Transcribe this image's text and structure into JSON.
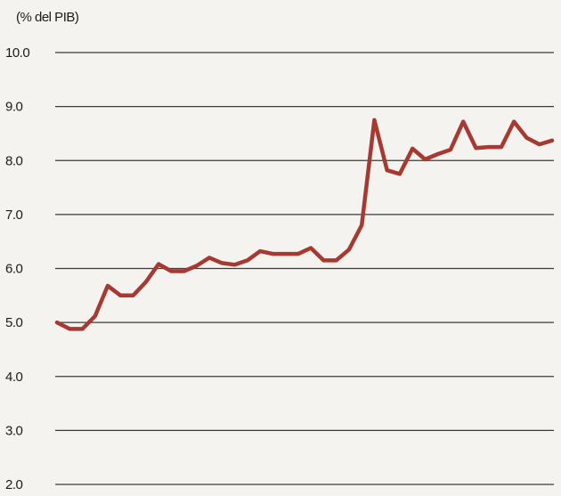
{
  "chart_data": {
    "type": "line",
    "title": "",
    "ylabel": "(% del PIB)",
    "xlabel": "",
    "ylim": [
      2.0,
      10.0
    ],
    "yticks": [
      "10.0",
      "9.0",
      "8.0",
      "7.0",
      "6.0",
      "5.0",
      "4.0",
      "3.0",
      "2.0"
    ],
    "grid": true,
    "series": [
      {
        "values": [
          5.0,
          4.88,
          4.88,
          5.12,
          5.68,
          5.5,
          5.5,
          5.75,
          6.08,
          5.95,
          5.95,
          6.05,
          6.2,
          6.1,
          6.07,
          6.15,
          6.32,
          6.27,
          6.27,
          6.27,
          6.38,
          6.15,
          6.15,
          6.35,
          6.8,
          8.75,
          7.82,
          7.75,
          8.22,
          8.02,
          8.12,
          8.2,
          8.72,
          8.23,
          8.25,
          8.25,
          8.72,
          8.42,
          8.3,
          8.37
        ]
      }
    ],
    "colors": {
      "line": "#a63a32",
      "grid": "#3a3a3a",
      "text": "#1a1a1a"
    }
  }
}
